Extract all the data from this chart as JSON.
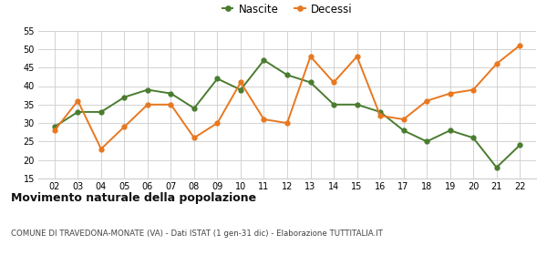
{
  "years": [
    2,
    3,
    4,
    5,
    6,
    7,
    8,
    9,
    10,
    11,
    12,
    13,
    14,
    15,
    16,
    17,
    18,
    19,
    20,
    21,
    22
  ],
  "nascite": [
    29,
    33,
    33,
    37,
    39,
    38,
    34,
    42,
    39,
    47,
    43,
    41,
    35,
    35,
    33,
    28,
    25,
    28,
    26,
    18,
    24
  ],
  "decessi": [
    28,
    36,
    23,
    29,
    35,
    35,
    26,
    30,
    41,
    31,
    30,
    48,
    41,
    48,
    32,
    31,
    36,
    38,
    39,
    46,
    51
  ],
  "nascite_color": "#4a7c2f",
  "decessi_color": "#e87820",
  "ylim": [
    15,
    55
  ],
  "yticks": [
    15,
    20,
    25,
    30,
    35,
    40,
    45,
    50,
    55
  ],
  "title": "Movimento naturale della popolazione",
  "subtitle": "COMUNE DI TRAVEDONA-MONATE (VA) - Dati ISTAT (1 gen-31 dic) - Elaborazione TUTTITALIA.IT",
  "legend_nascite": "Nascite",
  "legend_decessi": "Decessi",
  "bg_color": "#ffffff",
  "grid_color": "#cccccc"
}
